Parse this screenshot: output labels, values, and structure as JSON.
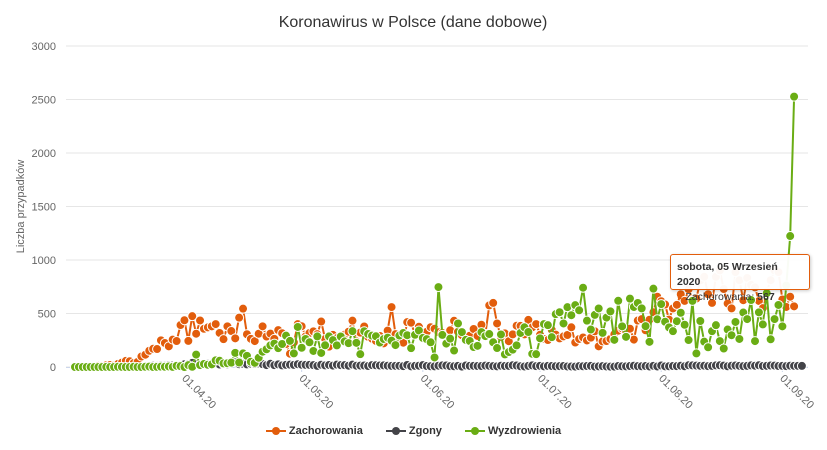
{
  "chart_data": {
    "type": "line",
    "title": "Koronawirus w Polsce (dane dobowe)",
    "xlabel": "",
    "ylabel": "Liczba przypadków",
    "ylim": [
      0,
      3000
    ],
    "yticks": [
      "0",
      "500",
      "1000",
      "1500",
      "2000",
      "2500",
      "3000"
    ],
    "x_start": "2020-03-04",
    "x_end": "2020-09-05",
    "xticks": [
      "01.04.20",
      "01.05.20",
      "01.06.20",
      "01.07.20",
      "01.08.20",
      "01.09.20"
    ],
    "grid": true,
    "legend_position": "bottom",
    "series": [
      {
        "name": "Zachorowania",
        "color": "#e25d0c",
        "values": [
          0,
          1,
          0,
          4,
          1,
          6,
          11,
          9,
          16,
          19,
          13,
          29,
          41,
          57,
          54,
          37,
          47,
          98,
          115,
          152,
          170,
          168,
          249,
          224,
          193,
          256,
          243,
          392,
          437,
          244,
          475,
          311,
          435,
          357,
          370,
          380,
          401,
          318,
          260,
          380,
          336,
          268,
          461,
          545,
          306,
          263,
          242,
          311,
          380,
          285,
          312,
          263,
          345,
          316,
          215,
          124,
          230,
          401,
          381,
          286,
          318,
          333,
          307,
          425,
          262,
          190,
          300,
          270,
          281,
          302,
          330,
          433,
          239,
          321,
          379,
          282,
          265,
          244,
          290,
          221,
          340,
          560,
          307,
          236,
          227,
          419,
          414,
          303,
          376,
          265,
          329,
          372,
          358,
          325,
          318,
          304,
          343,
          432,
          329,
          297,
          248,
          292,
          355,
          290,
          395,
          310,
          576,
          599,
          407,
          282,
          314,
          241,
          305,
          386,
          384,
          305,
          440,
          371,
          401,
          301,
          262,
          252,
          346,
          303,
          267,
          286,
          299,
          371,
          229,
          262,
          276,
          248,
          274,
          334,
          193,
          239,
          243,
          262,
          306,
          339,
          360,
          337,
          358,
          256,
          434,
          447,
          343,
          442,
          512,
          657,
          615,
          584,
          443,
          547,
          581,
          680,
          618,
          726,
          626,
          640,
          809,
          843,
          680,
          599,
          843,
          903,
          729,
          594,
          548,
          887,
          811,
          624,
          832,
          767,
          744,
          617,
          550,
          704,
          811,
          903,
          887,
          631,
          561,
          657,
          567
        ]
      },
      {
        "name": "Zgony",
        "color": "#434348",
        "values": [
          0,
          0,
          0,
          0,
          0,
          0,
          0,
          1,
          2,
          1,
          0,
          1,
          1,
          2,
          2,
          0,
          3,
          2,
          5,
          8,
          12,
          10,
          13,
          12,
          15,
          14,
          18,
          16,
          26,
          27,
          38,
          24,
          25,
          27,
          30,
          24,
          38,
          23,
          28,
          25,
          41,
          43,
          26,
          30,
          24,
          31,
          28,
          33,
          27,
          18,
          30,
          17,
          24,
          15,
          20,
          22,
          20,
          26,
          21,
          20,
          20,
          17,
          10,
          21,
          15,
          19,
          13,
          22,
          17,
          17,
          12,
          22,
          12,
          13,
          14,
          9,
          18,
          16,
          14,
          15,
          12,
          10,
          11,
          11,
          8,
          19,
          6,
          10,
          12,
          17,
          9,
          7,
          6,
          12,
          15,
          14,
          8,
          7,
          11,
          4,
          14,
          10,
          11,
          9,
          9,
          13,
          11,
          8,
          6,
          12,
          9,
          10,
          16,
          14,
          7,
          5,
          10,
          15,
          8,
          11,
          6,
          10,
          9,
          7,
          8,
          9,
          5,
          5,
          4,
          8,
          7,
          9,
          10,
          4,
          6,
          8,
          5,
          3,
          4,
          9,
          7,
          6,
          9,
          12,
          8,
          7,
          9,
          5,
          11,
          5,
          14,
          6,
          7,
          9,
          8,
          12,
          7,
          16,
          15,
          13,
          11,
          12,
          8,
          10,
          15,
          16,
          13,
          7,
          12,
          14,
          11,
          8,
          10,
          15,
          12,
          16,
          9,
          11,
          14,
          13,
          9,
          10,
          8,
          12,
          11,
          11,
          10
        ]
      },
      {
        "name": "Wyzdrowienia",
        "color": "#6aad14",
        "values": [
          0,
          0,
          0,
          0,
          0,
          0,
          0,
          0,
          1,
          0,
          0,
          2,
          1,
          0,
          0,
          2,
          0,
          0,
          2,
          4,
          0,
          1,
          3,
          2,
          5,
          1,
          11,
          8,
          0,
          17,
          2,
          116,
          18,
          28,
          21,
          25,
          62,
          58,
          34,
          35,
          41,
          132,
          42,
          127,
          104,
          49,
          39,
          86,
          143,
          166,
          202,
          219,
          176,
          215,
          293,
          244,
          127,
          374,
          180,
          262,
          231,
          150,
          286,
          131,
          203,
          286,
          251,
          202,
          285,
          239,
          223,
          335,
          226,
          120,
          334,
          308,
          293,
          287,
          229,
          262,
          274,
          246,
          205,
          294,
          318,
          297,
          176,
          301,
          341,
          272,
          260,
          231,
          89,
          747,
          300,
          219,
          265,
          154,
          407,
          326,
          253,
          243,
          187,
          198,
          326,
          289,
          308,
          231,
          177,
          304,
          118,
          140,
          162,
          202,
          318,
          371,
          327,
          123,
          120,
          268,
          401,
          391,
          279,
          494,
          512,
          407,
          559,
          484,
          578,
          530,
          741,
          433,
          350,
          487,
          547,
          319,
          462,
          520,
          254,
          619,
          380,
          282,
          639,
          561,
          598,
          548,
          382,
          235,
          732,
          446,
          588,
          423,
          370,
          335,
          428,
          507,
          395,
          252,
          618,
          127,
          430,
          237,
          184,
          335,
          391,
          242,
          173,
          350,
          297,
          421,
          262,
          509,
          448,
          626,
          242,
          511,
          398,
          690,
          259,
          448,
          580,
          380,
          762,
          1224,
          2527
        ]
      }
    ],
    "tooltip": {
      "header": "sobota, 05 Wrzesień 2020",
      "series": "Zachorowania",
      "value": "567"
    }
  }
}
